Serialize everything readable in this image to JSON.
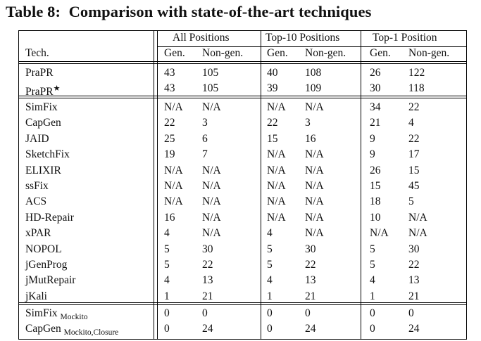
{
  "caption": {
    "label": "Table 8:",
    "title": "Comparison with state-of-the-art techniques"
  },
  "header": {
    "tech_label": "Tech.",
    "groups": [
      "All Positions",
      "Top-10 Positions",
      "Top-1 Position"
    ],
    "subcols": [
      "Gen.",
      "Non-gen.",
      "Gen.",
      "Non-gen.",
      "Gen.",
      "Non-gen."
    ]
  },
  "sections": [
    {
      "rows": [
        {
          "tech": "PraPR",
          "values": [
            "43",
            "105",
            "40",
            "108",
            "26",
            "122"
          ]
        },
        {
          "tech": "PraPR",
          "star": "★",
          "values": [
            "43",
            "105",
            "39",
            "109",
            "30",
            "118"
          ]
        }
      ]
    },
    {
      "rows": [
        {
          "tech": "SimFix",
          "values": [
            "N/A",
            "N/A",
            "N/A",
            "N/A",
            "34",
            "22"
          ]
        },
        {
          "tech": "CapGen",
          "values": [
            "22",
            "3",
            "22",
            "3",
            "21",
            "4"
          ]
        },
        {
          "tech": "JAID",
          "values": [
            "25",
            "6",
            "15",
            "16",
            "9",
            "22"
          ]
        },
        {
          "tech": "SketchFix",
          "values": [
            "19",
            "7",
            "N/A",
            "N/A",
            "9",
            "17"
          ]
        },
        {
          "tech": "ELIXIR",
          "values": [
            "N/A",
            "N/A",
            "N/A",
            "N/A",
            "26",
            "15"
          ]
        },
        {
          "tech": "ssFix",
          "values": [
            "N/A",
            "N/A",
            "N/A",
            "N/A",
            "15",
            "45"
          ]
        },
        {
          "tech": "ACS",
          "values": [
            "N/A",
            "N/A",
            "N/A",
            "N/A",
            "18",
            "5"
          ]
        },
        {
          "tech": "HD-Repair",
          "values": [
            "16",
            "N/A",
            "N/A",
            "N/A",
            "10",
            "N/A"
          ]
        },
        {
          "tech": "xPAR",
          "values": [
            "4",
            "N/A",
            "4",
            "N/A",
            "N/A",
            "N/A"
          ]
        },
        {
          "tech": "NOPOL",
          "values": [
            "5",
            "30",
            "5",
            "30",
            "5",
            "30"
          ]
        },
        {
          "tech": "jGenProg",
          "values": [
            "5",
            "22",
            "5",
            "22",
            "5",
            "22"
          ]
        },
        {
          "tech": "jMutRepair",
          "values": [
            "4",
            "13",
            "4",
            "13",
            "4",
            "13"
          ]
        },
        {
          "tech": "jKali",
          "values": [
            "1",
            "21",
            "1",
            "21",
            "1",
            "21"
          ]
        }
      ]
    },
    {
      "rows": [
        {
          "tech": "SimFix",
          "sub": "Mockito",
          "values": [
            "0",
            "0",
            "0",
            "0",
            "0",
            "0"
          ]
        },
        {
          "tech": "CapGen",
          "sub": "Mockito,Closure",
          "values": [
            "0",
            "24",
            "0",
            "24",
            "0",
            "24"
          ]
        }
      ]
    }
  ]
}
